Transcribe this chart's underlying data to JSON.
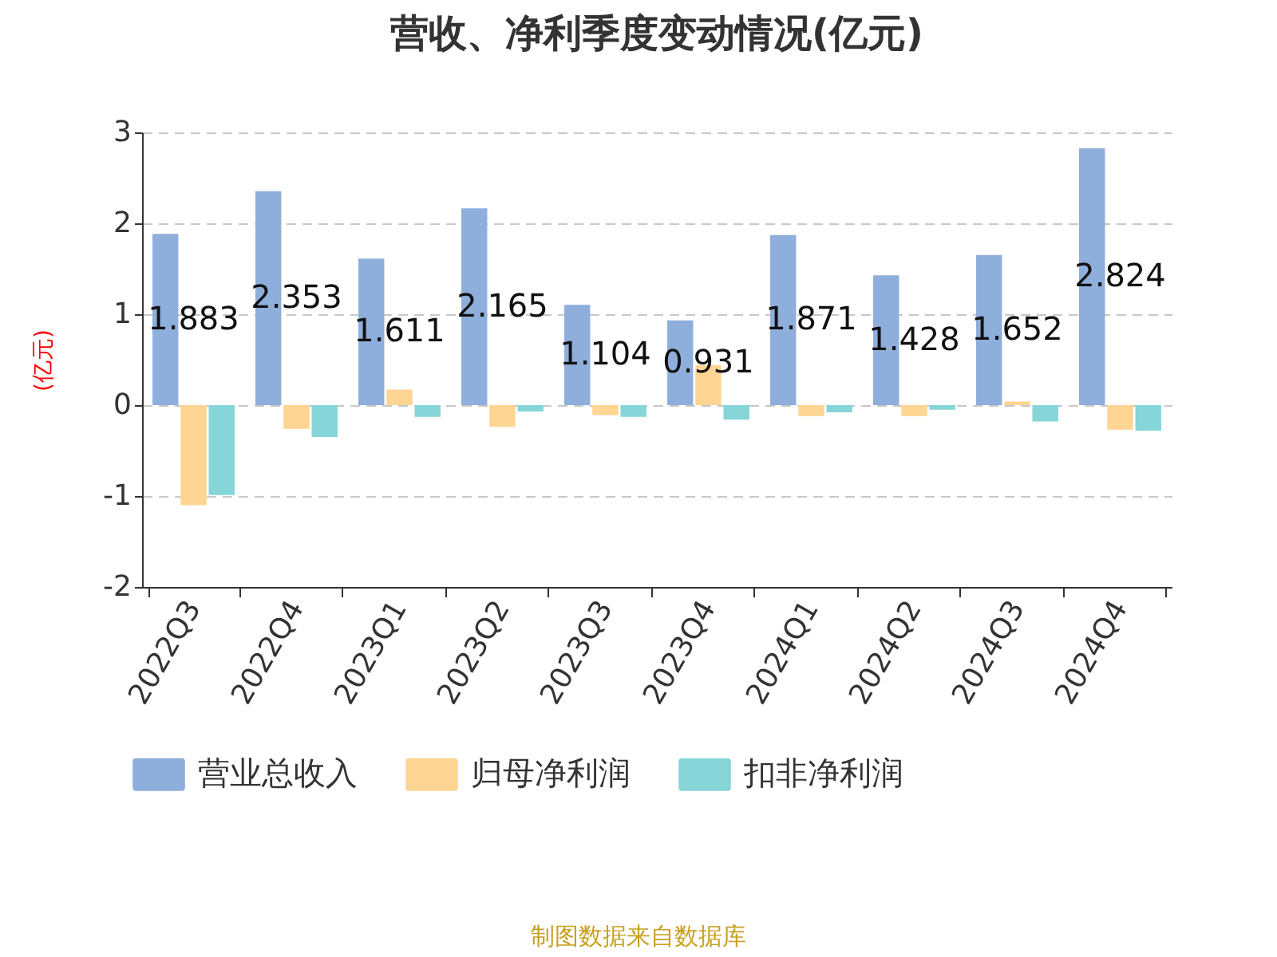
{
  "chart_data": {
    "type": "bar",
    "title": "营收、净利季度变动情况(亿元)",
    "ylabel": "(亿元)",
    "categories": [
      "2022Q3",
      "2022Q4",
      "2023Q1",
      "2023Q2",
      "2023Q3",
      "2023Q4",
      "2024Q1",
      "2024Q2",
      "2024Q3",
      "2024Q4"
    ],
    "series": [
      {
        "name": "营业总收入",
        "color": "#8eaedb",
        "values": [
          1.883,
          2.353,
          1.611,
          2.165,
          1.104,
          0.931,
          1.871,
          1.428,
          1.652,
          2.824
        ],
        "value_labels": [
          "1.883",
          "2.353",
          "1.611",
          "2.165",
          "1.104",
          "0.931",
          "1.871",
          "1.428",
          "1.652",
          "2.824"
        ]
      },
      {
        "name": "归母净利润",
        "color": "#ffd593",
        "values": [
          -1.1,
          -0.26,
          0.17,
          -0.24,
          -0.11,
          0.44,
          -0.12,
          -0.12,
          0.04,
          -0.27
        ]
      },
      {
        "name": "扣非净利润",
        "color": "#86d5d9",
        "values": [
          -0.99,
          -0.35,
          -0.13,
          -0.07,
          -0.13,
          -0.16,
          -0.08,
          -0.05,
          -0.18,
          -0.28
        ]
      }
    ],
    "ylim": [
      -2,
      3
    ],
    "yticks": [
      -2,
      -1,
      0,
      1,
      2,
      3
    ],
    "grid": "y",
    "legend": "bottom",
    "annotations": [
      "制图数据来自数据库"
    ]
  }
}
